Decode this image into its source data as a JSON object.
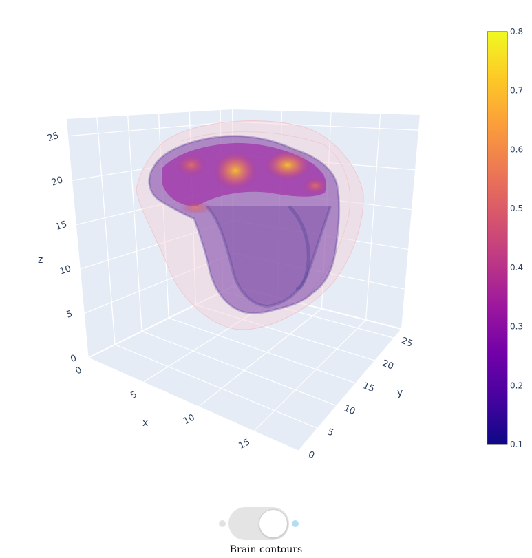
{
  "chart_data": {
    "type": "volume3d",
    "scene": {
      "x": {
        "title": "x",
        "ticks": [
          "0",
          "5",
          "10",
          "15"
        ],
        "range": [
          0,
          19
        ]
      },
      "y": {
        "title": "y",
        "ticks": [
          "0",
          "5",
          "10",
          "15",
          "20",
          "25"
        ],
        "range": [
          0,
          27
        ]
      },
      "z": {
        "title": "z",
        "ticks": [
          "0",
          "5",
          "10",
          "15",
          "20",
          "25"
        ],
        "range": [
          0,
          27
        ]
      },
      "background": "#e5ecf6",
      "grid": true
    },
    "colorbar": {
      "ticks": [
        "0.1",
        "0.2",
        "0.3",
        "0.4",
        "0.5",
        "0.6",
        "0.7",
        "0.8"
      ],
      "range": [
        0.1,
        0.8
      ],
      "colorscale": [
        "#0d0887",
        "#46039f",
        "#7201a8",
        "#9c179e",
        "#bd3786",
        "#d8576b",
        "#ed7953",
        "#fb9f3a",
        "#fdca26",
        "#f0f921"
      ]
    },
    "contour_color": "#f4c2c8"
  },
  "controls": {
    "toggle_label": "Brain contours",
    "toggle_on": true
  }
}
